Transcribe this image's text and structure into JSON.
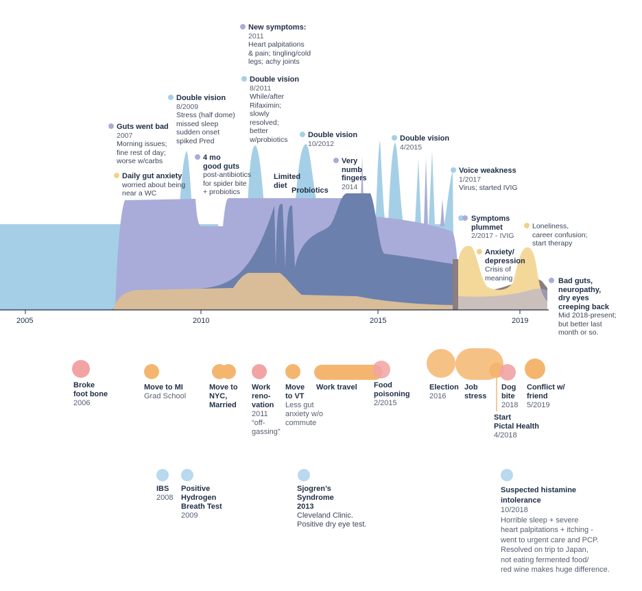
{
  "colors": {
    "gut": "#a9acd8",
    "blue": "#a5cfe6",
    "mid": "#6b80ad",
    "tan": "#d9bc98",
    "yellow": "#f3d89a",
    "brown": "#8c7d80",
    "life_orange": "#f4b66f",
    "life_pink": "#f2a3a4",
    "health_blue": "#b8d9ee",
    "dot_purple": "#a9acd8",
    "dot_blue": "#a5cfe6",
    "dot_yellow": "#f3d18a"
  },
  "axis": {
    "ticks": [
      "2005",
      "2010",
      "2015",
      "2019"
    ]
  },
  "annotations": [
    {
      "id": "new-symptoms",
      "title": "New symptoms:",
      "date": "2011",
      "body": "Heart palpitations\n & pain; tingling/cold\n legs; achy joints",
      "dot": "dot_purple"
    },
    {
      "id": "double-vision-2011",
      "title": "Double vision",
      "date": "8/2011",
      "body": "While/after\nRifaximin;\nslowly\nresolved;\nbetter\nw/probiotics",
      "dot": "dot_blue"
    },
    {
      "id": "double-vision-2009",
      "title": "Double vision",
      "date": "8/2009",
      "body": "Stress (half dome)\nmissed sleep\nsudden onset\nspiked Pred",
      "dot": "dot_blue"
    },
    {
      "id": "guts-went-bad",
      "title": "Guts went bad",
      "date": "2007",
      "body": "Morning issues;\nfine rest of day;\nworse w/carbs",
      "dot": "dot_purple"
    },
    {
      "id": "daily-gut-anxiety",
      "title": "Daily gut anxiety",
      "date": "",
      "body": "worried about being\nnear a WC",
      "dot": "dot_yellow"
    },
    {
      "id": "good-guts",
      "title": "4 mo\ngood guts",
      "date": "",
      "body": "post-antibiotics\nfor spider bite\n+ probiotics",
      "dot": "dot_purple"
    },
    {
      "id": "double-vision-2012",
      "title": "Double vision",
      "date": "10/2012",
      "body": "",
      "dot": "dot_blue"
    },
    {
      "id": "limited-diet",
      "title": "Limited\ndiet",
      "date": "",
      "body": "",
      "dot": ""
    },
    {
      "id": "probiotics",
      "title": "Probiotics",
      "date": "",
      "body": "",
      "dot": ""
    },
    {
      "id": "numb-fingers",
      "title": "Very\nnumb\nfingers",
      "date": "2014",
      "body": "",
      "dot": "dot_purple"
    },
    {
      "id": "double-vision-2015",
      "title": "Double vision",
      "date": "4/2015",
      "body": "",
      "dot": "dot_blue"
    },
    {
      "id": "voice-weakness",
      "title": "Voice weakness",
      "date": "1/2017",
      "body": "Virus; started IVIG",
      "dot": "dot_blue"
    },
    {
      "id": "symptoms-plummet",
      "title": "Symptoms\nplummet",
      "date": "2/2017 - IVIG",
      "body": "",
      "dot": "dot_blue"
    },
    {
      "id": "loneliness",
      "title": "",
      "date": "",
      "body": "Loneliness,\ncareer confusion;\nstart therapy",
      "dot": "dot_yellow"
    },
    {
      "id": "anxiety",
      "title": "Anxiety/\ndepression",
      "date": "",
      "body": "Crisis of\nmeaning",
      "dot": "dot_yellow"
    },
    {
      "id": "bad-guts",
      "title": "Bad guts,\nneuropathy,\ndry eyes\ncreeping back",
      "date": "",
      "body": "Mid 2018-present;\nbut better last\nmonth or so.",
      "dot": "dot_purple"
    }
  ],
  "life_events": [
    {
      "id": "broke-foot",
      "title": "Broke\nfoot bone",
      "date": "2006",
      "body": ""
    },
    {
      "id": "move-mi",
      "title": "Move to MI",
      "date": "Grad School",
      "body": ""
    },
    {
      "id": "move-nyc",
      "title": "Move to\nNYC,\nMarried",
      "date": "",
      "body": ""
    },
    {
      "id": "work-renovation",
      "title": "Work\nreno-\nvation",
      "date": "2011",
      "body": "“off-\ngassing”"
    },
    {
      "id": "move-vt",
      "title": "Move\nto VT",
      "date": "",
      "body": "Less gut\nanxiety w/o\ncommute"
    },
    {
      "id": "work-travel",
      "title": "Work travel",
      "date": "",
      "body": ""
    },
    {
      "id": "food-poisoning",
      "title": "Food\npoisoning",
      "date": "2/2015",
      "body": ""
    },
    {
      "id": "election",
      "title": "Election",
      "date": "2016",
      "body": ""
    },
    {
      "id": "job-stress",
      "title": "Job\nstress",
      "date": "",
      "body": ""
    },
    {
      "id": "dog-bite",
      "title": "Dog\nbite",
      "date": "2018",
      "body": ""
    },
    {
      "id": "conflict",
      "title": "Conflict w/\nfriend",
      "date": "5/2019",
      "body": ""
    },
    {
      "id": "pictal",
      "title": "Start\nPictal Health",
      "date": "4/2018",
      "body": ""
    }
  ],
  "health_events": [
    {
      "id": "ibs",
      "title": "IBS",
      "date": "2008",
      "body": ""
    },
    {
      "id": "hydrogen",
      "title": "Positive\nHydrogen\nBreath Test",
      "date": "2009",
      "body": ""
    },
    {
      "id": "sjogren",
      "title": "Sjogren’s\nSyndrome\n2013",
      "date": "",
      "body": "Cleveland Clinic.\nPositive dry eye test."
    },
    {
      "id": "histamine",
      "title": "Suspected histamine\nintolerance",
      "date": "10/2018",
      "body": "Horrible sleep + severe\nheart palpitations + itching -\nwent to urgent care and PCP.\nResolved on trip to Japan,\nnot eating fermented food/\nred wine makes huge difference."
    }
  ]
}
